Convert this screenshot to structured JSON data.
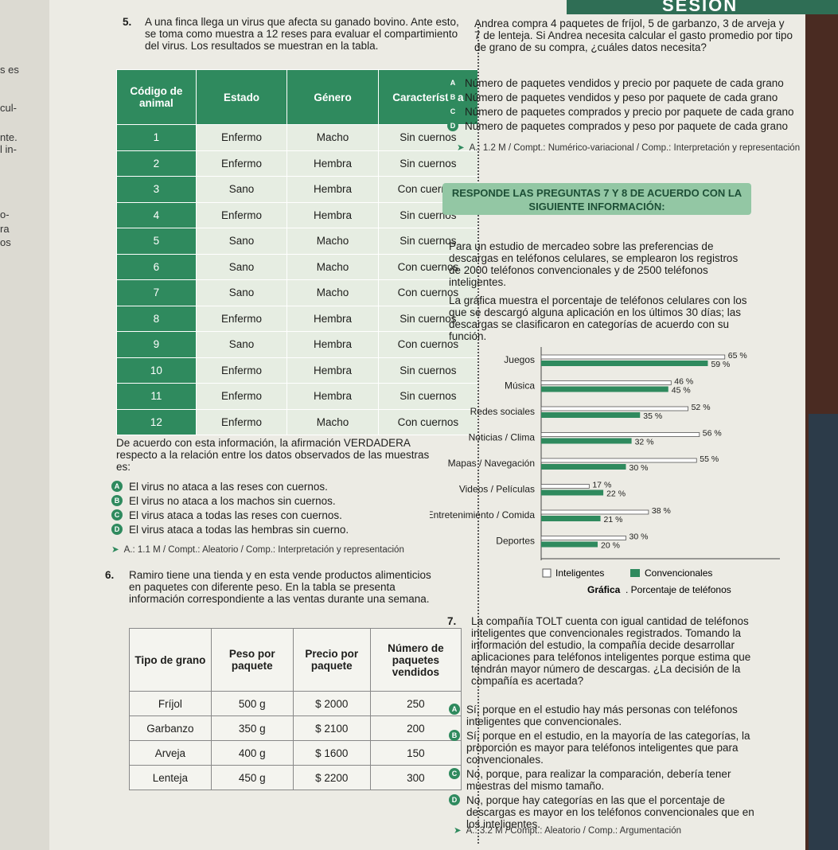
{
  "header": {
    "session": "SESIÓN"
  },
  "left_page_fragments": [
    "s es",
    "cul-",
    "nte.",
    "l in-",
    "o-",
    "ra",
    "os"
  ],
  "q5": {
    "number": "5.",
    "text": "A una finca llega un virus que afecta su ganado bovino. Ante esto, se toma como muestra a 12 reses para evaluar el compartimiento del virus. Los resultados se muestran en la tabla.",
    "table": {
      "headers": [
        "Código de animal",
        "Estado",
        "Género",
        "Característica"
      ],
      "rows": [
        [
          "1",
          "Enfermo",
          "Macho",
          "Sin cuernos"
        ],
        [
          "2",
          "Enfermo",
          "Hembra",
          "Sin cuernos"
        ],
        [
          "3",
          "Sano",
          "Hembra",
          "Con cuernos"
        ],
        [
          "4",
          "Enfermo",
          "Hembra",
          "Sin cuernos"
        ],
        [
          "5",
          "Sano",
          "Macho",
          "Sin cuernos"
        ],
        [
          "6",
          "Sano",
          "Macho",
          "Con cuernos"
        ],
        [
          "7",
          "Sano",
          "Macho",
          "Con cuernos"
        ],
        [
          "8",
          "Enfermo",
          "Hembra",
          "Sin cuernos"
        ],
        [
          "9",
          "Sano",
          "Hembra",
          "Con cuernos"
        ],
        [
          "10",
          "Enfermo",
          "Hembra",
          "Sin cuernos"
        ],
        [
          "11",
          "Enfermo",
          "Hembra",
          "Sin cuernos"
        ],
        [
          "12",
          "Enfermo",
          "Macho",
          "Con cuernos"
        ]
      ]
    },
    "question": "De acuerdo con esta información, la afirmación VERDADERA respecto a la relación entre los datos observados de las muestras es:",
    "options": [
      {
        "letter": "A",
        "text": "El virus no ataca a las reses con cuernos."
      },
      {
        "letter": "B",
        "text": "El virus no ataca a los machos sin cuernos."
      },
      {
        "letter": "C",
        "text": "El virus ataca a todas las reses con cuernos."
      },
      {
        "letter": "D",
        "text": "El virus ataca a todas las hembras sin cuerno."
      }
    ],
    "meta": "A.: 1.1 M / Compt.: Aleatorio / Comp.: Interpretación y representación"
  },
  "q6": {
    "number": "6.",
    "text": "Ramiro tiene una tienda y en esta vende productos alimenticios en paquetes con diferente peso. En la tabla se presenta información correspondiente a las ventas durante una semana.",
    "table": {
      "headers": [
        "Tipo de grano",
        "Peso por paquete",
        "Precio por paquete",
        "Número de paquetes vendidos"
      ],
      "rows": [
        [
          "Fríjol",
          "500 g",
          "$ 2000",
          "250"
        ],
        [
          "Garbanzo",
          "350 g",
          "$ 2100",
          "200"
        ],
        [
          "Arveja",
          "400 g",
          "$ 1600",
          "150"
        ],
        [
          "Lenteja",
          "450 g",
          "$ 2200",
          "300"
        ]
      ]
    },
    "continuation": "Andrea compra 4 paquetes de fríjol, 5 de garbanzo, 3 de arveja y 7 de lenteja. Si Andrea necesita calcular el gasto promedio por tipo de grano de su compra, ¿cuáles datos necesita?",
    "options": [
      {
        "letter": "A",
        "text": "Número de paquetes vendidos y precio por paquete de cada grano"
      },
      {
        "letter": "B",
        "text": "Número de paquetes vendidos y peso por paquete de cada grano"
      },
      {
        "letter": "C",
        "text": "Número de paquetes comprados y precio por paquete de cada grano"
      },
      {
        "letter": "D",
        "text": "Número de paquetes comprados y peso por paquete de cada grano"
      }
    ],
    "meta": "A.: 1.2 M / Compt.: Numérico-variacional / Comp.: Interpretación y representación"
  },
  "banner": "RESPONDE LAS PREGUNTAS 7 Y 8 DE ACUERDO CON LA SIGUIENTE INFORMACIÓN:",
  "intro1": "Para un estudio de mercadeo sobre las preferencias de descargas en teléfonos celulares, se emplearon los registros de 2000 teléfonos convencionales y de 2500 teléfonos inteligentes.",
  "intro2": "La gráfica muestra el porcentaje de teléfonos celulares con los que se descargó alguna aplicación en los últimos 30 días; las descargas se clasificaron en categorías de acuerdo con su función.",
  "colors": {
    "accent": "#2f8a5e",
    "banner": "#93c7a4"
  },
  "chart_data": {
    "type": "bar",
    "orientation": "horizontal",
    "categories": [
      "Juegos",
      "Música",
      "Redes sociales",
      "Noticias / Clima",
      "Mapas / Navegación",
      "Videos / Películas",
      "Entretenimiento / Comida",
      "Deportes"
    ],
    "series": [
      {
        "name": "Inteligentes",
        "values": [
          65,
          46,
          52,
          56,
          55,
          17,
          38,
          30
        ],
        "labels": [
          "65 %",
          "46 %",
          "52 %",
          "56 %",
          "55 %",
          "17 %",
          "38 %",
          "30 %"
        ]
      },
      {
        "name": "Convencionales",
        "values": [
          59,
          45,
          35,
          32,
          30,
          22,
          21,
          20
        ],
        "labels": [
          "59 %",
          "45 %",
          "35 %",
          "32 %",
          "30 %",
          "22 %",
          "21 %",
          "20 %"
        ]
      }
    ],
    "xlim": [
      0,
      70
    ],
    "legend": "bottom",
    "caption_bold": "Gráfica",
    "caption_rest": ". Porcentaje de teléfonos"
  },
  "q7": {
    "number": "7.",
    "text": "La compañía TOLT cuenta con igual cantidad de teléfonos inteligentes que convencionales registrados. Tomando la información del estudio, la compañía decide desarrollar aplicaciones para teléfonos inteligentes porque estima que tendrán mayor número de descargas. ¿La decisión de la compañía es acertada?",
    "options": [
      {
        "letter": "A",
        "text": "Sí, porque en el estudio hay más personas con teléfonos inteligentes que convencionales."
      },
      {
        "letter": "B",
        "text": "Sí, porque en el estudio, en la mayoría de las categorías, la proporción es mayor para teléfonos inteligentes que para convencionales."
      },
      {
        "letter": "C",
        "text": "No, porque, para realizar la comparación, debería tener muestras del mismo tamaño."
      },
      {
        "letter": "D",
        "text": "No, porque hay categorías en las que el porcentaje de descargas es mayor en los teléfonos convencionales que en los inteligentes."
      }
    ],
    "meta": "A.: 3.2 M / Compt.: Aleatorio / Comp.: Argumentación"
  }
}
